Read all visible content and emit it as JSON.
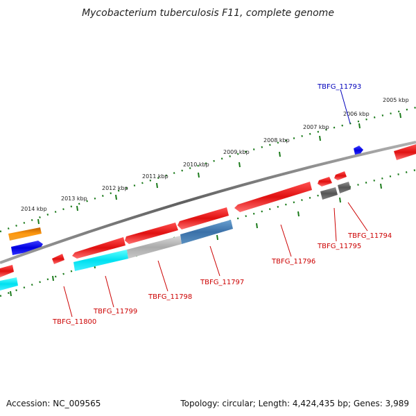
{
  "title": "Mycobacterium tuberculosis F11, complete genome",
  "footer": {
    "accession": "Accession: NC_009565",
    "summary": "Topology: circular; Length: 4,424,435 bp; Genes: 3,989"
  },
  "scale_labels": [
    "2014 kbp",
    "2013 kbp",
    "2012 kbp",
    "2011 kbp",
    "2010 kbp",
    "2009 kbp",
    "2008 kbp",
    "2007 kbp",
    "2006 kbp",
    "2005 kbp"
  ],
  "gene_labels": [
    "TBFG_11793",
    "TBFG_11794",
    "TBFG_11795",
    "TBFG_11796",
    "TBFG_11797",
    "TBFG_11798",
    "TBFG_11799",
    "TBFG_11800"
  ],
  "colors": {
    "backbone": "#7a7a7a",
    "tick": "#1a7a1a",
    "forward_gene": "#e61a1a",
    "cds_red": "#e61a1a",
    "cds_blue": "#1010e8",
    "cds_orange": "#f08a0a",
    "cds_cyan": "#12e0e8",
    "cds_gray": "#b0b0b0",
    "cds_steelblue": "#4a7fb0",
    "cds_darkgray": "#6a6a6a",
    "label_red": "#cc0000",
    "label_blue": "#0000bb"
  }
}
